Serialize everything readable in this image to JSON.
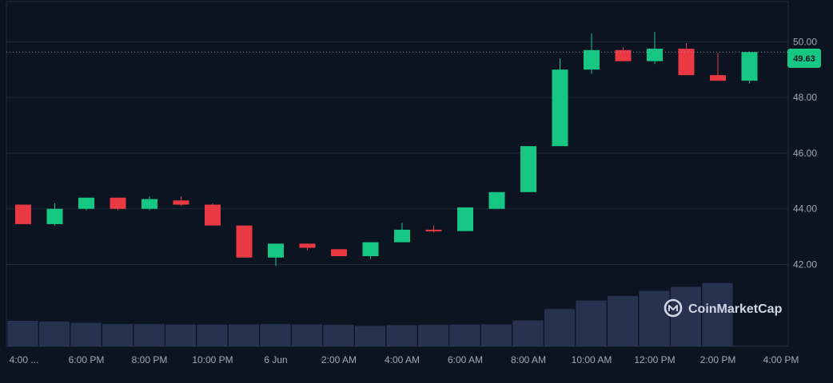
{
  "chart_data": {
    "type": "candlestick",
    "title": "",
    "xlabel": "",
    "ylabel": "",
    "ylim": [
      40.0,
      50.6
    ],
    "y_ticks": [
      "42.00",
      "44.00",
      "46.00",
      "48.00",
      "50.00"
    ],
    "y_tick_values": [
      42,
      44,
      46,
      48,
      50
    ],
    "x_ticks": [
      {
        "label": "4:00 ...",
        "index": 0
      },
      {
        "label": "6:00 PM",
        "index": 2
      },
      {
        "label": "8:00 PM",
        "index": 4
      },
      {
        "label": "10:00 PM",
        "index": 6
      },
      {
        "label": "6 Jun",
        "index": 8
      },
      {
        "label": "2:00 AM",
        "index": 10
      },
      {
        "label": "4:00 AM",
        "index": 12
      },
      {
        "label": "6:00 AM",
        "index": 14
      },
      {
        "label": "8:00 AM",
        "index": 16
      },
      {
        "label": "10:00 AM",
        "index": 18
      },
      {
        "label": "12:00 PM",
        "index": 20
      },
      {
        "label": "2:00 PM",
        "index": 22
      },
      {
        "label": "4:00 PM",
        "index": 24
      }
    ],
    "candles": [
      {
        "open": 44.15,
        "high": 44.15,
        "low": 43.45,
        "close": 43.45
      },
      {
        "open": 43.45,
        "high": 44.2,
        "low": 43.4,
        "close": 44.0
      },
      {
        "open": 44.0,
        "high": 44.4,
        "low": 43.95,
        "close": 44.4
      },
      {
        "open": 44.4,
        "high": 44.4,
        "low": 43.95,
        "close": 44.0
      },
      {
        "open": 44.0,
        "high": 44.45,
        "low": 43.95,
        "close": 44.35
      },
      {
        "open": 44.3,
        "high": 44.45,
        "low": 44.1,
        "close": 44.15
      },
      {
        "open": 44.15,
        "high": 44.2,
        "low": 43.4,
        "close": 43.4
      },
      {
        "open": 43.4,
        "high": 43.4,
        "low": 42.25,
        "close": 42.25
      },
      {
        "open": 42.25,
        "high": 42.75,
        "low": 41.95,
        "close": 42.75
      },
      {
        "open": 42.75,
        "high": 42.75,
        "low": 42.5,
        "close": 42.6
      },
      {
        "open": 42.55,
        "high": 42.55,
        "low": 42.3,
        "close": 42.3
      },
      {
        "open": 42.3,
        "high": 42.8,
        "low": 42.2,
        "close": 42.8
      },
      {
        "open": 42.8,
        "high": 43.5,
        "low": 42.8,
        "close": 43.25
      },
      {
        "open": 43.25,
        "high": 43.4,
        "low": 43.15,
        "close": 43.2
      },
      {
        "open": 43.2,
        "high": 44.05,
        "low": 43.2,
        "close": 44.05
      },
      {
        "open": 44.0,
        "high": 44.6,
        "low": 44.0,
        "close": 44.6
      },
      {
        "open": 44.6,
        "high": 46.25,
        "low": 44.6,
        "close": 46.25
      },
      {
        "open": 46.25,
        "high": 49.4,
        "low": 46.25,
        "close": 49.0
      },
      {
        "open": 49.0,
        "high": 50.3,
        "low": 48.85,
        "close": 49.7
      },
      {
        "open": 49.7,
        "high": 49.8,
        "low": 49.3,
        "close": 49.3
      },
      {
        "open": 49.3,
        "high": 50.35,
        "low": 49.2,
        "close": 49.75
      },
      {
        "open": 49.75,
        "high": 49.95,
        "low": 48.8,
        "close": 48.8
      },
      {
        "open": 48.8,
        "high": 49.6,
        "low": 48.6,
        "close": 48.6
      },
      {
        "open": 48.6,
        "high": 49.65,
        "low": 48.5,
        "close": 49.63
      }
    ],
    "volume": [
      1.0,
      0.97,
      0.92,
      0.87,
      0.87,
      0.85,
      0.85,
      0.86,
      0.87,
      0.86,
      0.84,
      0.8,
      0.83,
      0.84,
      0.85,
      0.86,
      1.01,
      1.46,
      1.79,
      1.97,
      2.17,
      2.33,
      2.48
    ],
    "current_price": 49.63,
    "current_price_label": "49.63",
    "colors": {
      "up": "#16c784",
      "down": "#ea3943",
      "volume": "#26324f",
      "grid": "#222b3b",
      "background": "#0d1421",
      "axis_text": "#a1a7bb"
    },
    "grid": true
  },
  "watermark": {
    "text": "CoinMarketCap",
    "icon": "coinmarketcap-logo-icon"
  }
}
